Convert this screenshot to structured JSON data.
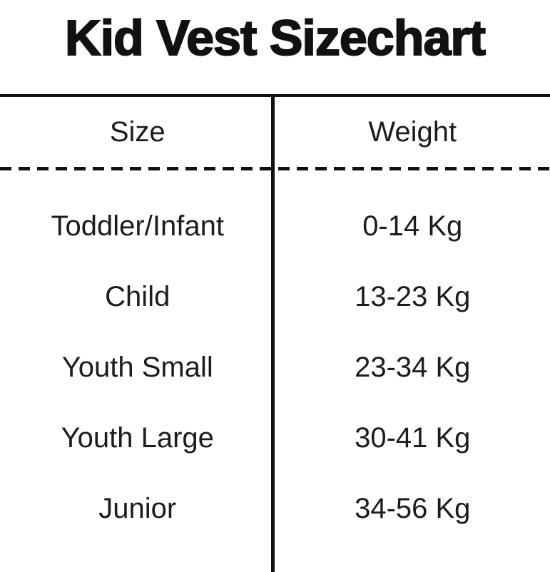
{
  "page": {
    "title": "Kid Vest Sizechart"
  },
  "table": {
    "columns": [
      {
        "label": "Size"
      },
      {
        "label": "Weight"
      }
    ],
    "rows": [
      {
        "size": "Toddler/Infant",
        "weight": "0-14 Kg"
      },
      {
        "size": "Child",
        "weight": "13-23 Kg"
      },
      {
        "size": "Youth Small",
        "weight": "23-34 Kg"
      },
      {
        "size": "Youth Large",
        "weight": "30-41 Kg"
      },
      {
        "size": "Junior",
        "weight": "34-56 Kg"
      }
    ]
  },
  "colors": {
    "background": "#ffffff",
    "text": "#1c1c1c",
    "line": "#111111"
  }
}
